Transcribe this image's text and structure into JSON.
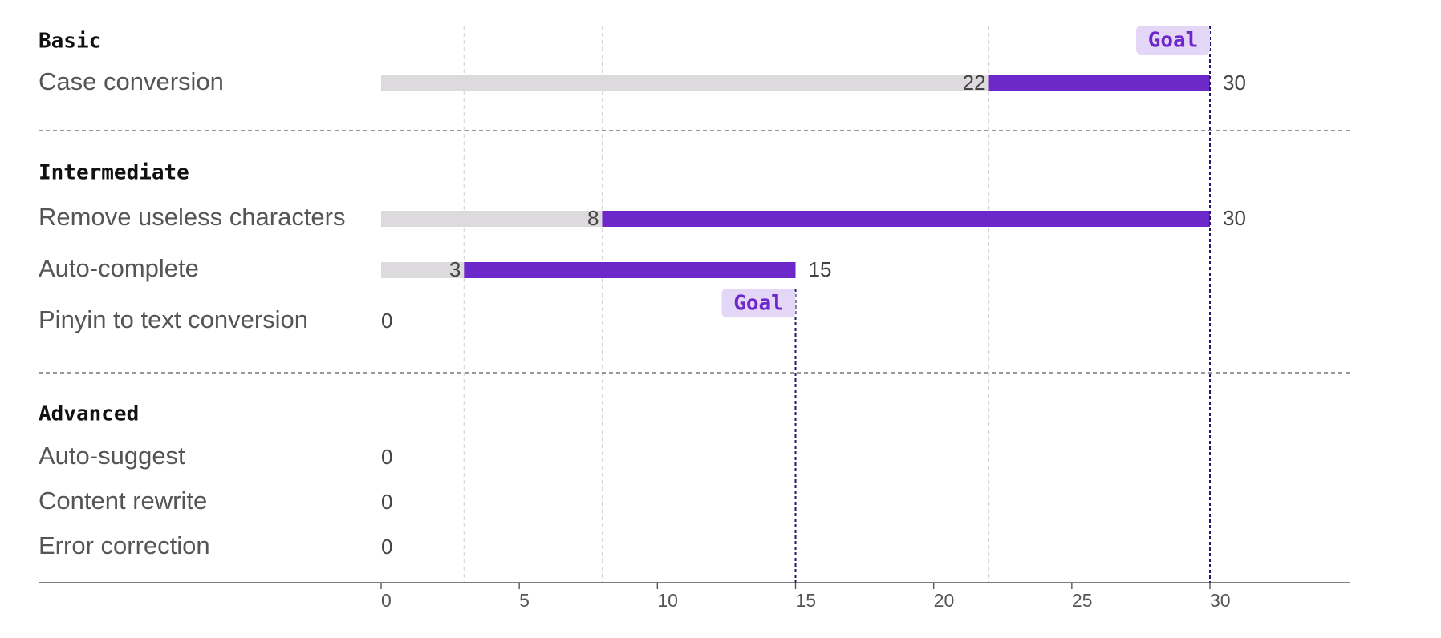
{
  "chart_data": {
    "type": "bar",
    "orientation": "horizontal",
    "xlim": [
      0,
      35
    ],
    "x_ticks": [
      "0",
      "5",
      "10",
      "15",
      "20",
      "25",
      "30"
    ],
    "grid": "vertical dashed",
    "groups": [
      {
        "name": "Basic",
        "goal": 30,
        "goal_label": "Goal",
        "rows": [
          {
            "label": "Case conversion",
            "start": 22,
            "end": 30,
            "start_label": "22",
            "end_label": "30"
          }
        ]
      },
      {
        "name": "Intermediate",
        "goal": 15,
        "goal_label": "Goal",
        "rows": [
          {
            "label": "Remove useless characters",
            "start": 8,
            "end": 30,
            "start_label": "8",
            "end_label": "30"
          },
          {
            "label": "Auto-complete",
            "start": 3,
            "end": 15,
            "start_label": "3",
            "end_label": "15"
          },
          {
            "label": "Pinyin to text conversion",
            "start": 0,
            "end": 0,
            "start_label": "",
            "end_label": "0"
          }
        ]
      },
      {
        "name": "Advanced",
        "rows": [
          {
            "label": "Auto-suggest",
            "start": 0,
            "end": 0,
            "start_label": "",
            "end_label": "0"
          },
          {
            "label": "Content rewrite",
            "start": 0,
            "end": 0,
            "start_label": "",
            "end_label": "0"
          },
          {
            "label": "Error correction",
            "start": 0,
            "end": 0,
            "start_label": "",
            "end_label": "0"
          }
        ]
      }
    ],
    "colors": {
      "progress": "#6d28c9",
      "track": "#dcdadd",
      "goal_line": "#1e1b6e",
      "goal_badge_bg": "#e3d6f6",
      "goal_badge_text": "#6d28c9",
      "grid": "#d8d8d8",
      "separator": "#777777",
      "axis": "#555555"
    }
  }
}
